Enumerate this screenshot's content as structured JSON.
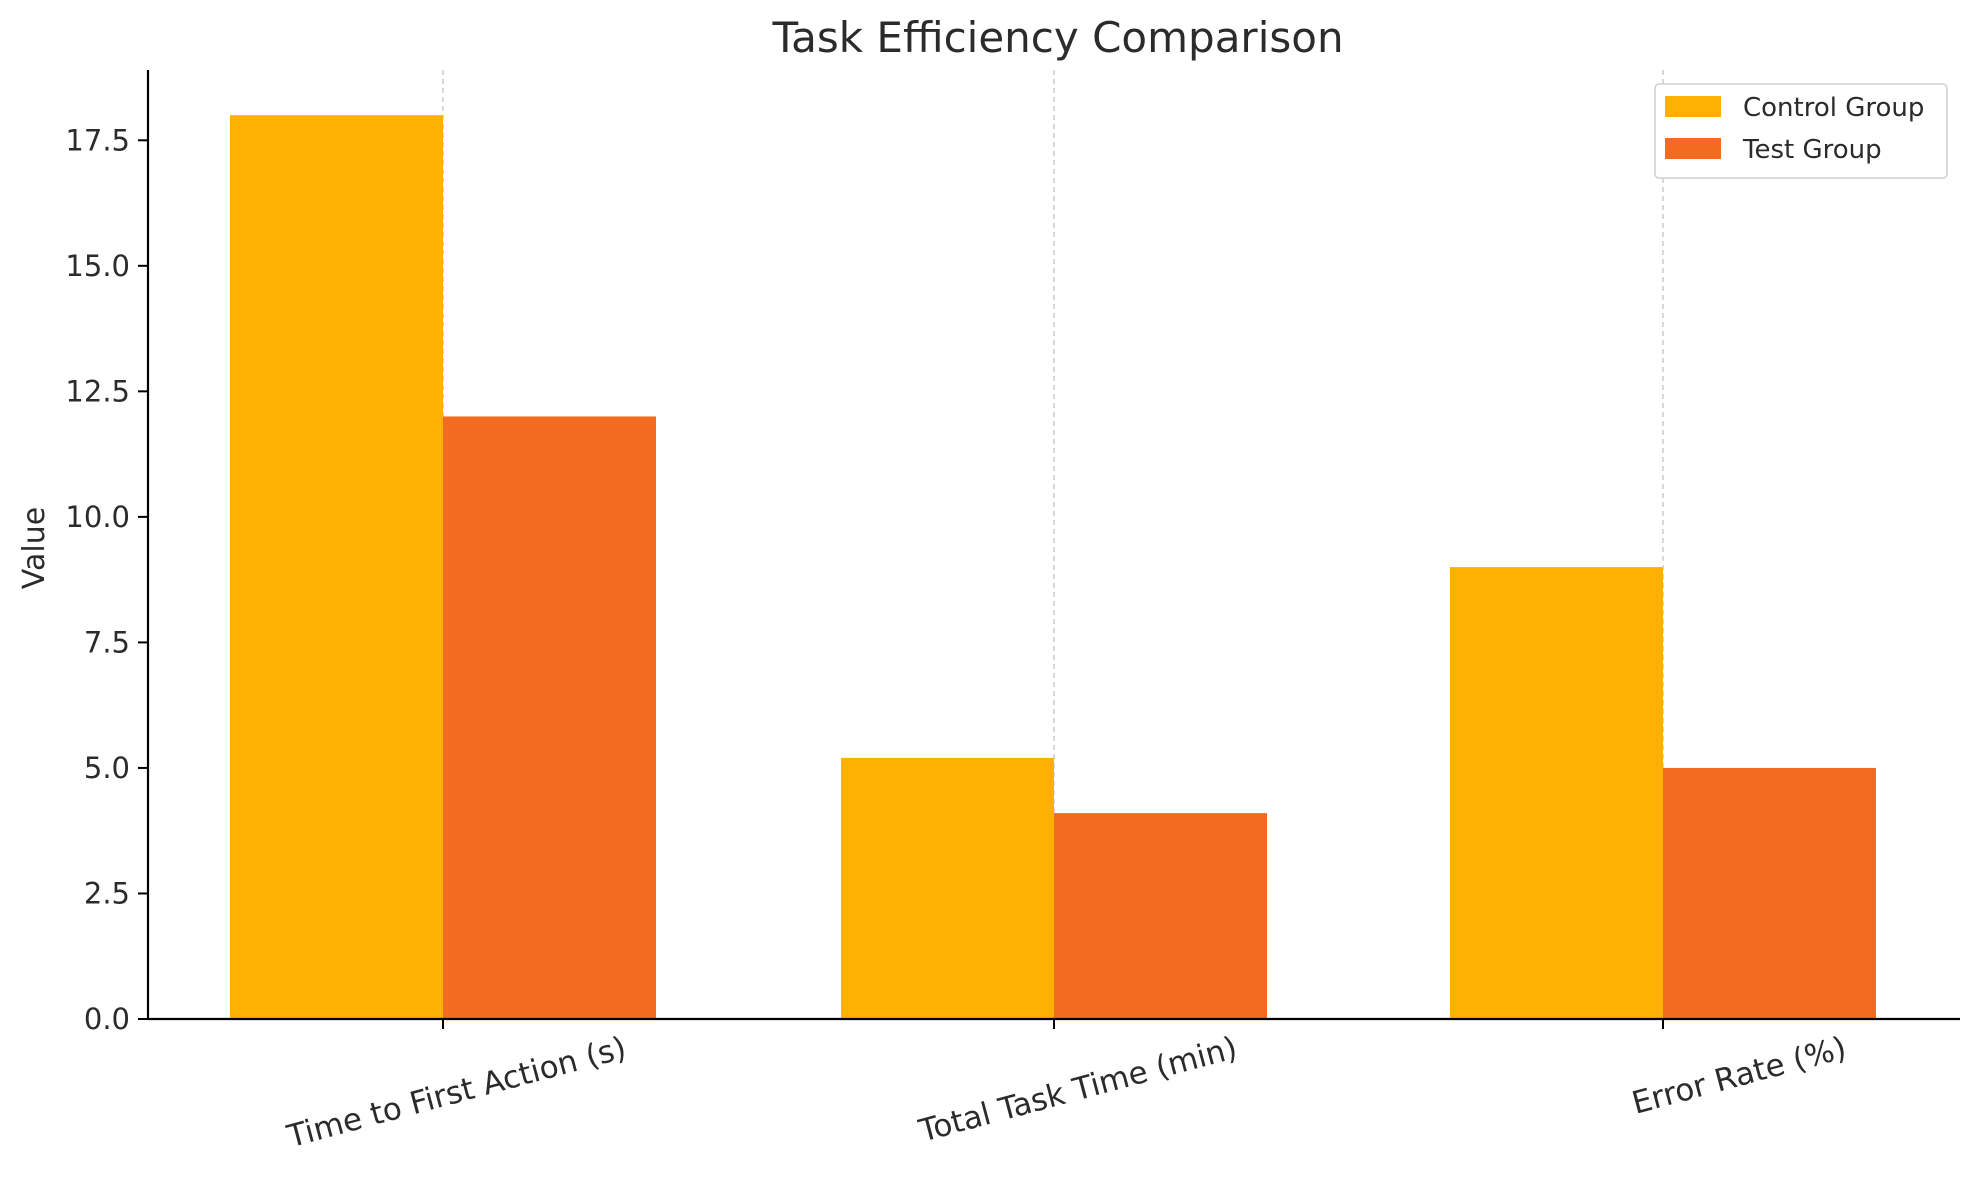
{
  "chart_data": {
    "type": "bar",
    "title": "Task Efficiency Comparison",
    "xlabel": "",
    "ylabel": "Value",
    "categories": [
      "Time to First Action (s)",
      "Total Task Time (min)",
      "Error Rate (%)"
    ],
    "series": [
      {
        "name": "Control Group",
        "color": "#FFB000",
        "values": [
          18.0,
          5.2,
          9.0
        ]
      },
      {
        "name": "Test Group",
        "color": "#F26B21",
        "values": [
          12.0,
          4.1,
          5.0
        ]
      }
    ],
    "ylim": [
      0,
      18.9
    ],
    "yticks": [
      "0.0",
      "2.5",
      "5.0",
      "7.5",
      "10.0",
      "12.5",
      "15.0",
      "17.5"
    ],
    "grid": "x-axis, dashed",
    "legend_position": "top-right"
  }
}
